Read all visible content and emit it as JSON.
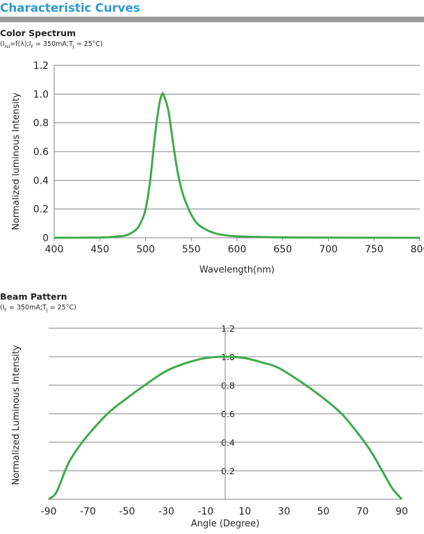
{
  "header": {
    "title": "Characteristic Curves"
  },
  "spectrum": {
    "title": "Color Spectrum",
    "conditions": {
      "p1": "(I",
      "s1": "rel",
      "p2": "=f(λ);I",
      "s2": "F",
      "p3": " = 350mA;T",
      "s3": "J",
      "p4": " = 25°C)"
    }
  },
  "beam": {
    "title": "Beam Pattern",
    "conditions": {
      "p1": "(I",
      "s1": "F",
      "p2": " = 350mA;T",
      "s2": "J",
      "p3": " = 25°C)"
    }
  },
  "colors": {
    "curve": "#3daa4a",
    "grid": "#808285",
    "header_title": "#2e9bd6",
    "header_bar": "#9a9a9a"
  },
  "chart_data": [
    {
      "type": "line",
      "xlabel": "Wavelength(nm)",
      "ylabel": "Normalized luminous Intensity",
      "xlim": [
        400,
        800
      ],
      "ylim": [
        0,
        1.2
      ],
      "x_ticks": [
        "400",
        "450",
        "500",
        "550",
        "600",
        "650",
        "700",
        "750",
        "800"
      ],
      "y_ticks": [
        "0",
        "0.2",
        "0.4",
        "0.6",
        "0.8",
        "1.0",
        "1.2"
      ],
      "grid": "horizontal",
      "series": [
        {
          "x": [
            400,
            450,
            470,
            480,
            490,
            495,
            500,
            505,
            510,
            515,
            518,
            520,
            525,
            530,
            535,
            540,
            545,
            550,
            555,
            560,
            570,
            580,
            600,
            650,
            700,
            800
          ],
          "y": [
            0,
            0.002,
            0.01,
            0.02,
            0.06,
            0.11,
            0.2,
            0.4,
            0.7,
            0.93,
            1.0,
            0.99,
            0.88,
            0.66,
            0.46,
            0.32,
            0.23,
            0.16,
            0.11,
            0.08,
            0.045,
            0.025,
            0.01,
            0.003,
            0.001,
            0
          ]
        }
      ]
    },
    {
      "type": "line",
      "xlabel": "Angle (Degree)",
      "ylabel": "Normalized Luminous Intensity",
      "xlim": [
        -90,
        90
      ],
      "ylim": [
        0,
        1.2
      ],
      "x_ticks": [
        "-90",
        "-70",
        "-50",
        "-30",
        "-10",
        "10",
        "30",
        "50",
        "70",
        "90"
      ],
      "y_ticks": [
        "0.2",
        "0.4",
        "0.6",
        "0.8",
        "1.0",
        "1.2"
      ],
      "grid": "horizontal",
      "series": [
        {
          "x": [
            -90,
            -87,
            -85,
            -80,
            -75,
            -70,
            -60,
            -50,
            -40,
            -30,
            -20,
            -10,
            0,
            10,
            20,
            25,
            30,
            40,
            50,
            60,
            70,
            75,
            80,
            85,
            88,
            90
          ],
          "y": [
            0,
            0.03,
            0.08,
            0.25,
            0.36,
            0.45,
            0.6,
            0.71,
            0.81,
            0.9,
            0.955,
            0.99,
            1.0,
            0.99,
            0.955,
            0.935,
            0.9,
            0.81,
            0.71,
            0.59,
            0.42,
            0.32,
            0.2,
            0.08,
            0.03,
            0
          ]
        }
      ]
    }
  ]
}
